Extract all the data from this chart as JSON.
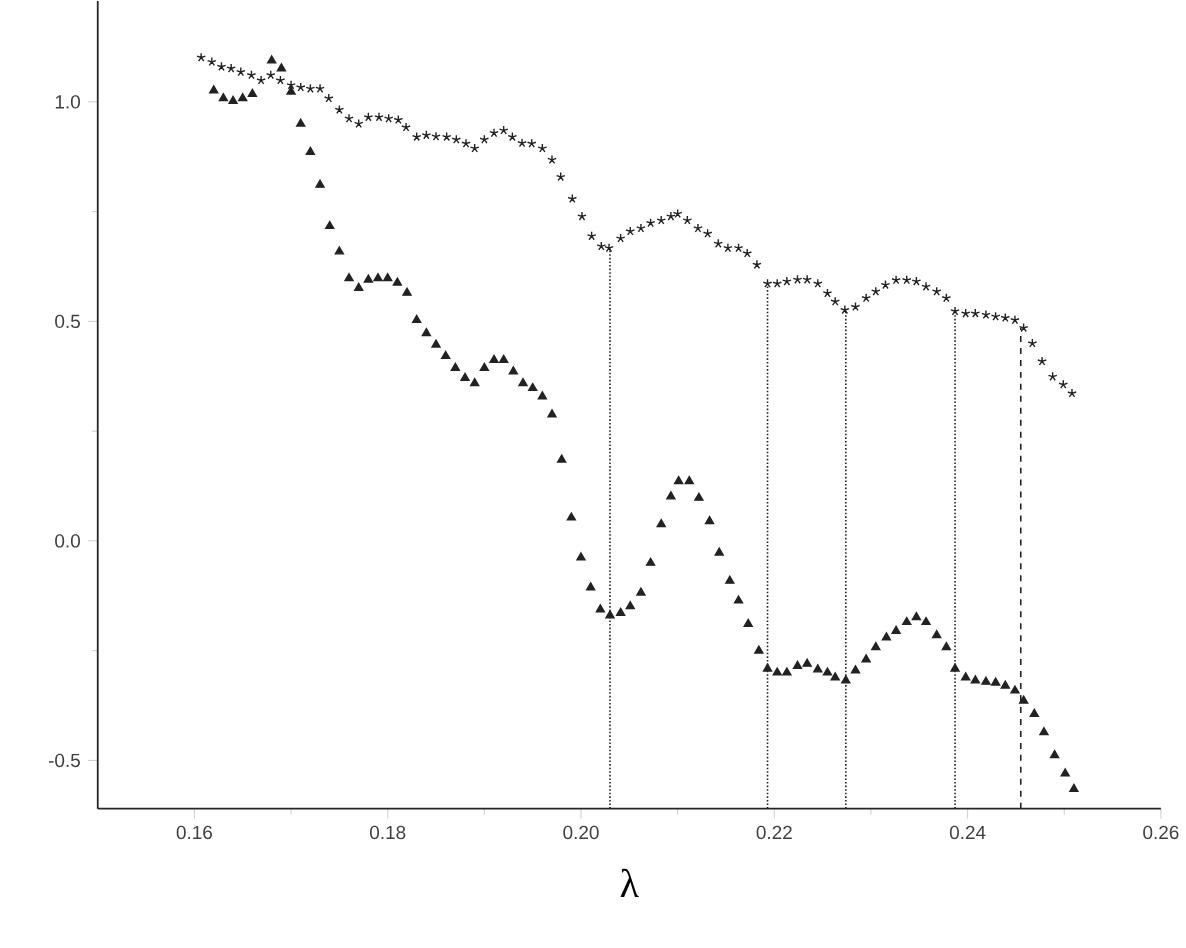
{
  "chart_data": {
    "type": "scatter",
    "xlabel": "λ",
    "xlim": [
      0.15,
      0.26
    ],
    "ylim": [
      -0.61,
      1.23
    ],
    "xticks": [
      0.16,
      0.18,
      {
        "value": 0.2,
        "label": "0.20"
      },
      0.22,
      0.24,
      0.26
    ],
    "yticks": [
      -0.5,
      {
        "value": 0,
        "label": "0.0"
      },
      0.5,
      {
        "value": 1,
        "label": "1.0"
      }
    ],
    "series": [
      {
        "color": "#222222",
        "marker": "cross",
        "x": [
          0.1607,
          0.1618,
          0.1628,
          0.1638,
          0.1648,
          0.1659,
          0.1669,
          0.1679,
          0.1689,
          0.17,
          0.171,
          0.172,
          0.173,
          0.1739,
          0.175,
          0.176,
          0.177,
          0.178,
          0.1791,
          0.1801,
          0.1811,
          0.1819,
          0.183,
          0.184,
          0.185,
          0.1861,
          0.1871,
          0.1881,
          0.189,
          0.19,
          0.191,
          0.192,
          0.1929,
          0.1939,
          0.1949,
          0.196,
          0.197,
          0.1979,
          0.1991,
          0.2001,
          0.2011,
          0.2021,
          0.2029,
          0.2041,
          0.2051,
          0.2062,
          0.2072,
          0.2083,
          0.2093,
          0.21,
          0.211,
          0.2121,
          0.2131,
          0.2142,
          0.2152,
          0.2163,
          0.2172,
          0.2182,
          0.2193,
          0.2203,
          0.2213,
          0.2224,
          0.2234,
          0.2245,
          0.2255,
          0.2263,
          0.2273,
          0.2284,
          0.2295,
          0.2305,
          0.2315,
          0.2326,
          0.2337,
          0.2347,
          0.2357,
          0.2368,
          0.2378,
          0.2387,
          0.2398,
          0.2408,
          0.2419,
          0.2429,
          0.2439,
          0.2449,
          0.2458,
          0.2467,
          0.2477,
          0.2488,
          0.2499,
          0.2508
        ],
        "values": [
          1.101,
          1.091,
          1.08,
          1.076,
          1.068,
          1.061,
          1.049,
          1.061,
          1.049,
          1.038,
          1.033,
          1.03,
          1.03,
          1.008,
          0.982,
          0.962,
          0.95,
          0.965,
          0.965,
          0.962,
          0.959,
          0.942,
          0.92,
          0.924,
          0.921,
          0.92,
          0.914,
          0.905,
          0.894,
          0.914,
          0.929,
          0.935,
          0.92,
          0.906,
          0.905,
          0.894,
          0.868,
          0.829,
          0.779,
          0.739,
          0.694,
          0.671,
          0.667,
          0.689,
          0.705,
          0.712,
          0.724,
          0.73,
          0.739,
          0.745,
          0.73,
          0.712,
          0.7,
          0.677,
          0.667,
          0.667,
          0.655,
          0.629,
          0.586,
          0.586,
          0.591,
          0.595,
          0.595,
          0.586,
          0.564,
          0.545,
          0.526,
          0.533,
          0.553,
          0.568,
          0.583,
          0.594,
          0.594,
          0.591,
          0.579,
          0.568,
          0.553,
          0.523,
          0.518,
          0.518,
          0.515,
          0.511,
          0.508,
          0.503,
          0.485,
          0.45,
          0.409,
          0.374,
          0.356,
          0.336
        ]
      },
      {
        "color": "#222222",
        "marker": "triangle",
        "x": [
          0.162,
          0.163,
          0.164,
          0.165,
          0.166,
          0.168,
          0.169,
          0.17,
          0.171,
          0.172,
          0.173,
          0.174,
          0.175,
          0.176,
          0.177,
          0.178,
          0.179,
          0.18,
          0.181,
          0.182,
          0.183,
          0.184,
          0.185,
          0.186,
          0.187,
          0.188,
          0.189,
          0.19,
          0.191,
          0.192,
          0.193,
          0.194,
          0.195,
          0.196,
          0.197,
          0.198,
          0.199,
          0.2,
          0.201,
          0.202,
          0.203,
          0.2041,
          0.2051,
          0.2062,
          0.2072,
          0.2083,
          0.2093,
          0.2101,
          0.2112,
          0.2122,
          0.2133,
          0.2143,
          0.2154,
          0.2163,
          0.2173,
          0.2184,
          0.2193,
          0.2203,
          0.2213,
          0.2224,
          0.2234,
          0.2245,
          0.2255,
          0.2263,
          0.2274,
          0.2284,
          0.2295,
          0.2305,
          0.2316,
          0.2326,
          0.2337,
          0.2347,
          0.2357,
          0.2368,
          0.2378,
          0.2387,
          0.2398,
          0.2408,
          0.2419,
          0.2429,
          0.2439,
          0.2449,
          0.2458,
          0.2469,
          0.2479,
          0.249,
          0.2501,
          0.251
        ],
        "values": [
          1.026,
          1.008,
          1.002,
          1.008,
          1.018,
          1.094,
          1.076,
          1.023,
          0.95,
          0.886,
          0.811,
          0.717,
          0.659,
          0.598,
          0.576,
          0.595,
          0.598,
          0.598,
          0.588,
          0.565,
          0.503,
          0.473,
          0.447,
          0.421,
          0.394,
          0.371,
          0.359,
          0.394,
          0.412,
          0.412,
          0.386,
          0.359,
          0.348,
          0.329,
          0.288,
          0.185,
          0.053,
          -0.038,
          -0.106,
          -0.156,
          -0.17,
          -0.164,
          -0.149,
          -0.118,
          -0.05,
          0.038,
          0.101,
          0.136,
          0.136,
          0.098,
          0.045,
          -0.027,
          -0.091,
          -0.136,
          -0.189,
          -0.25,
          -0.291,
          -0.3,
          -0.3,
          -0.285,
          -0.28,
          -0.293,
          -0.3,
          -0.311,
          -0.318,
          -0.295,
          -0.27,
          -0.242,
          -0.22,
          -0.205,
          -0.185,
          -0.174,
          -0.185,
          -0.215,
          -0.242,
          -0.291,
          -0.311,
          -0.318,
          -0.321,
          -0.323,
          -0.33,
          -0.341,
          -0.364,
          -0.394,
          -0.436,
          -0.488,
          -0.53,
          -0.565
        ]
      }
    ],
    "ref_lines": [
      {
        "axis": "x",
        "value": 0.203,
        "line_style": "dotted",
        "color": "#222222"
      },
      {
        "axis": "x",
        "value": 0.2193,
        "line_style": "dotted",
        "color": "#222222"
      },
      {
        "axis": "x",
        "value": 0.2274,
        "line_style": "dotted",
        "color": "#222222"
      },
      {
        "axis": "x",
        "value": 0.2387,
        "line_style": "dotted",
        "color": "#222222"
      },
      {
        "axis": "x",
        "value": 0.2455,
        "line_style": "dashed",
        "color": "#222222"
      }
    ]
  }
}
